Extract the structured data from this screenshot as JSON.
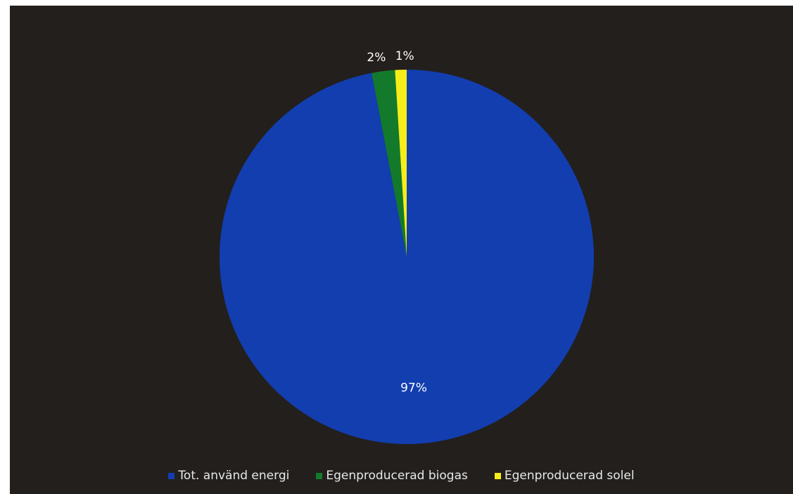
{
  "chart_data": {
    "type": "pie",
    "title": "",
    "categories": [
      "Tot. använd energi",
      "Egenproducerad biogas",
      "Egenproducerad solel"
    ],
    "values": [
      97,
      2,
      1
    ],
    "value_labels": [
      "97%",
      "2%",
      "1%"
    ],
    "colors": [
      "#123eb0",
      "#137a2c",
      "#f5ee1a"
    ],
    "legend_position": "bottom",
    "legend": [
      "Tot. använd energi",
      "Egenproducerad biogas",
      "Egenproducerad solel"
    ],
    "start_angle": "12 o'clock",
    "direction": "clockwise"
  }
}
